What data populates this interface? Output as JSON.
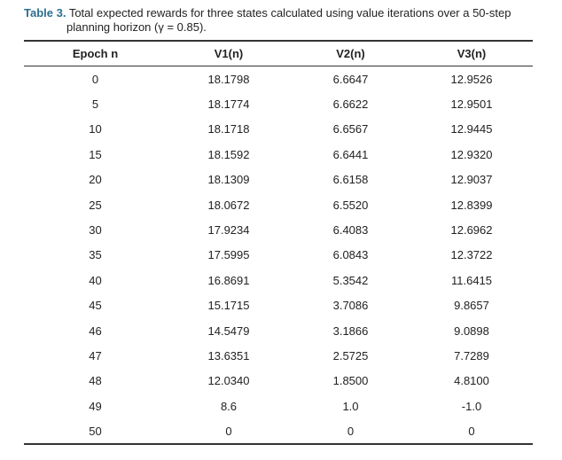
{
  "caption": {
    "label": "Table 3.",
    "text_line1": " Total expected rewards for three states calculated using value iterations over a 50-step",
    "text_line2": "planning horizon (γ = 0.85)."
  },
  "colors": {
    "caption_label": "#2b6f8f",
    "text": "#222222",
    "rules": "#333333"
  },
  "table": {
    "headers": [
      "Epoch n",
      "V1(n)",
      "V2(n)",
      "V3(n)"
    ],
    "rows": [
      [
        "0",
        "18.1798",
        "6.6647",
        "12.9526"
      ],
      [
        "5",
        "18.1774",
        "6.6622",
        "12.9501"
      ],
      [
        "10",
        "18.1718",
        "6.6567",
        "12.9445"
      ],
      [
        "15",
        "18.1592",
        "6.6441",
        "12.9320"
      ],
      [
        "20",
        "18.1309",
        "6.6158",
        "12.9037"
      ],
      [
        "25",
        "18.0672",
        "6.5520",
        "12.8399"
      ],
      [
        "30",
        "17.9234",
        "6.4083",
        "12.6962"
      ],
      [
        "35",
        "17.5995",
        "6.0843",
        "12.3722"
      ],
      [
        "40",
        "16.8691",
        "5.3542",
        "11.6415"
      ],
      [
        "45",
        "15.1715",
        "3.7086",
        "9.8657"
      ],
      [
        "46",
        "14.5479",
        "3.1866",
        "9.0898"
      ],
      [
        "47",
        "13.6351",
        "2.5725",
        "7.7289"
      ],
      [
        "48",
        "12.0340",
        "1.8500",
        "4.8100"
      ],
      [
        "49",
        "8.6",
        "1.0",
        "-1.0"
      ],
      [
        "50",
        "0",
        "0",
        "0"
      ]
    ]
  }
}
